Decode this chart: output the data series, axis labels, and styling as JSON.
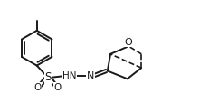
{
  "background": "#ffffff",
  "line_color": "#1a1a1a",
  "lw": 1.4,
  "figsize": [
    2.31,
    1.24
  ],
  "dpi": 100,
  "xlim": [
    0,
    10.5
  ],
  "ylim": [
    0,
    5.5
  ]
}
